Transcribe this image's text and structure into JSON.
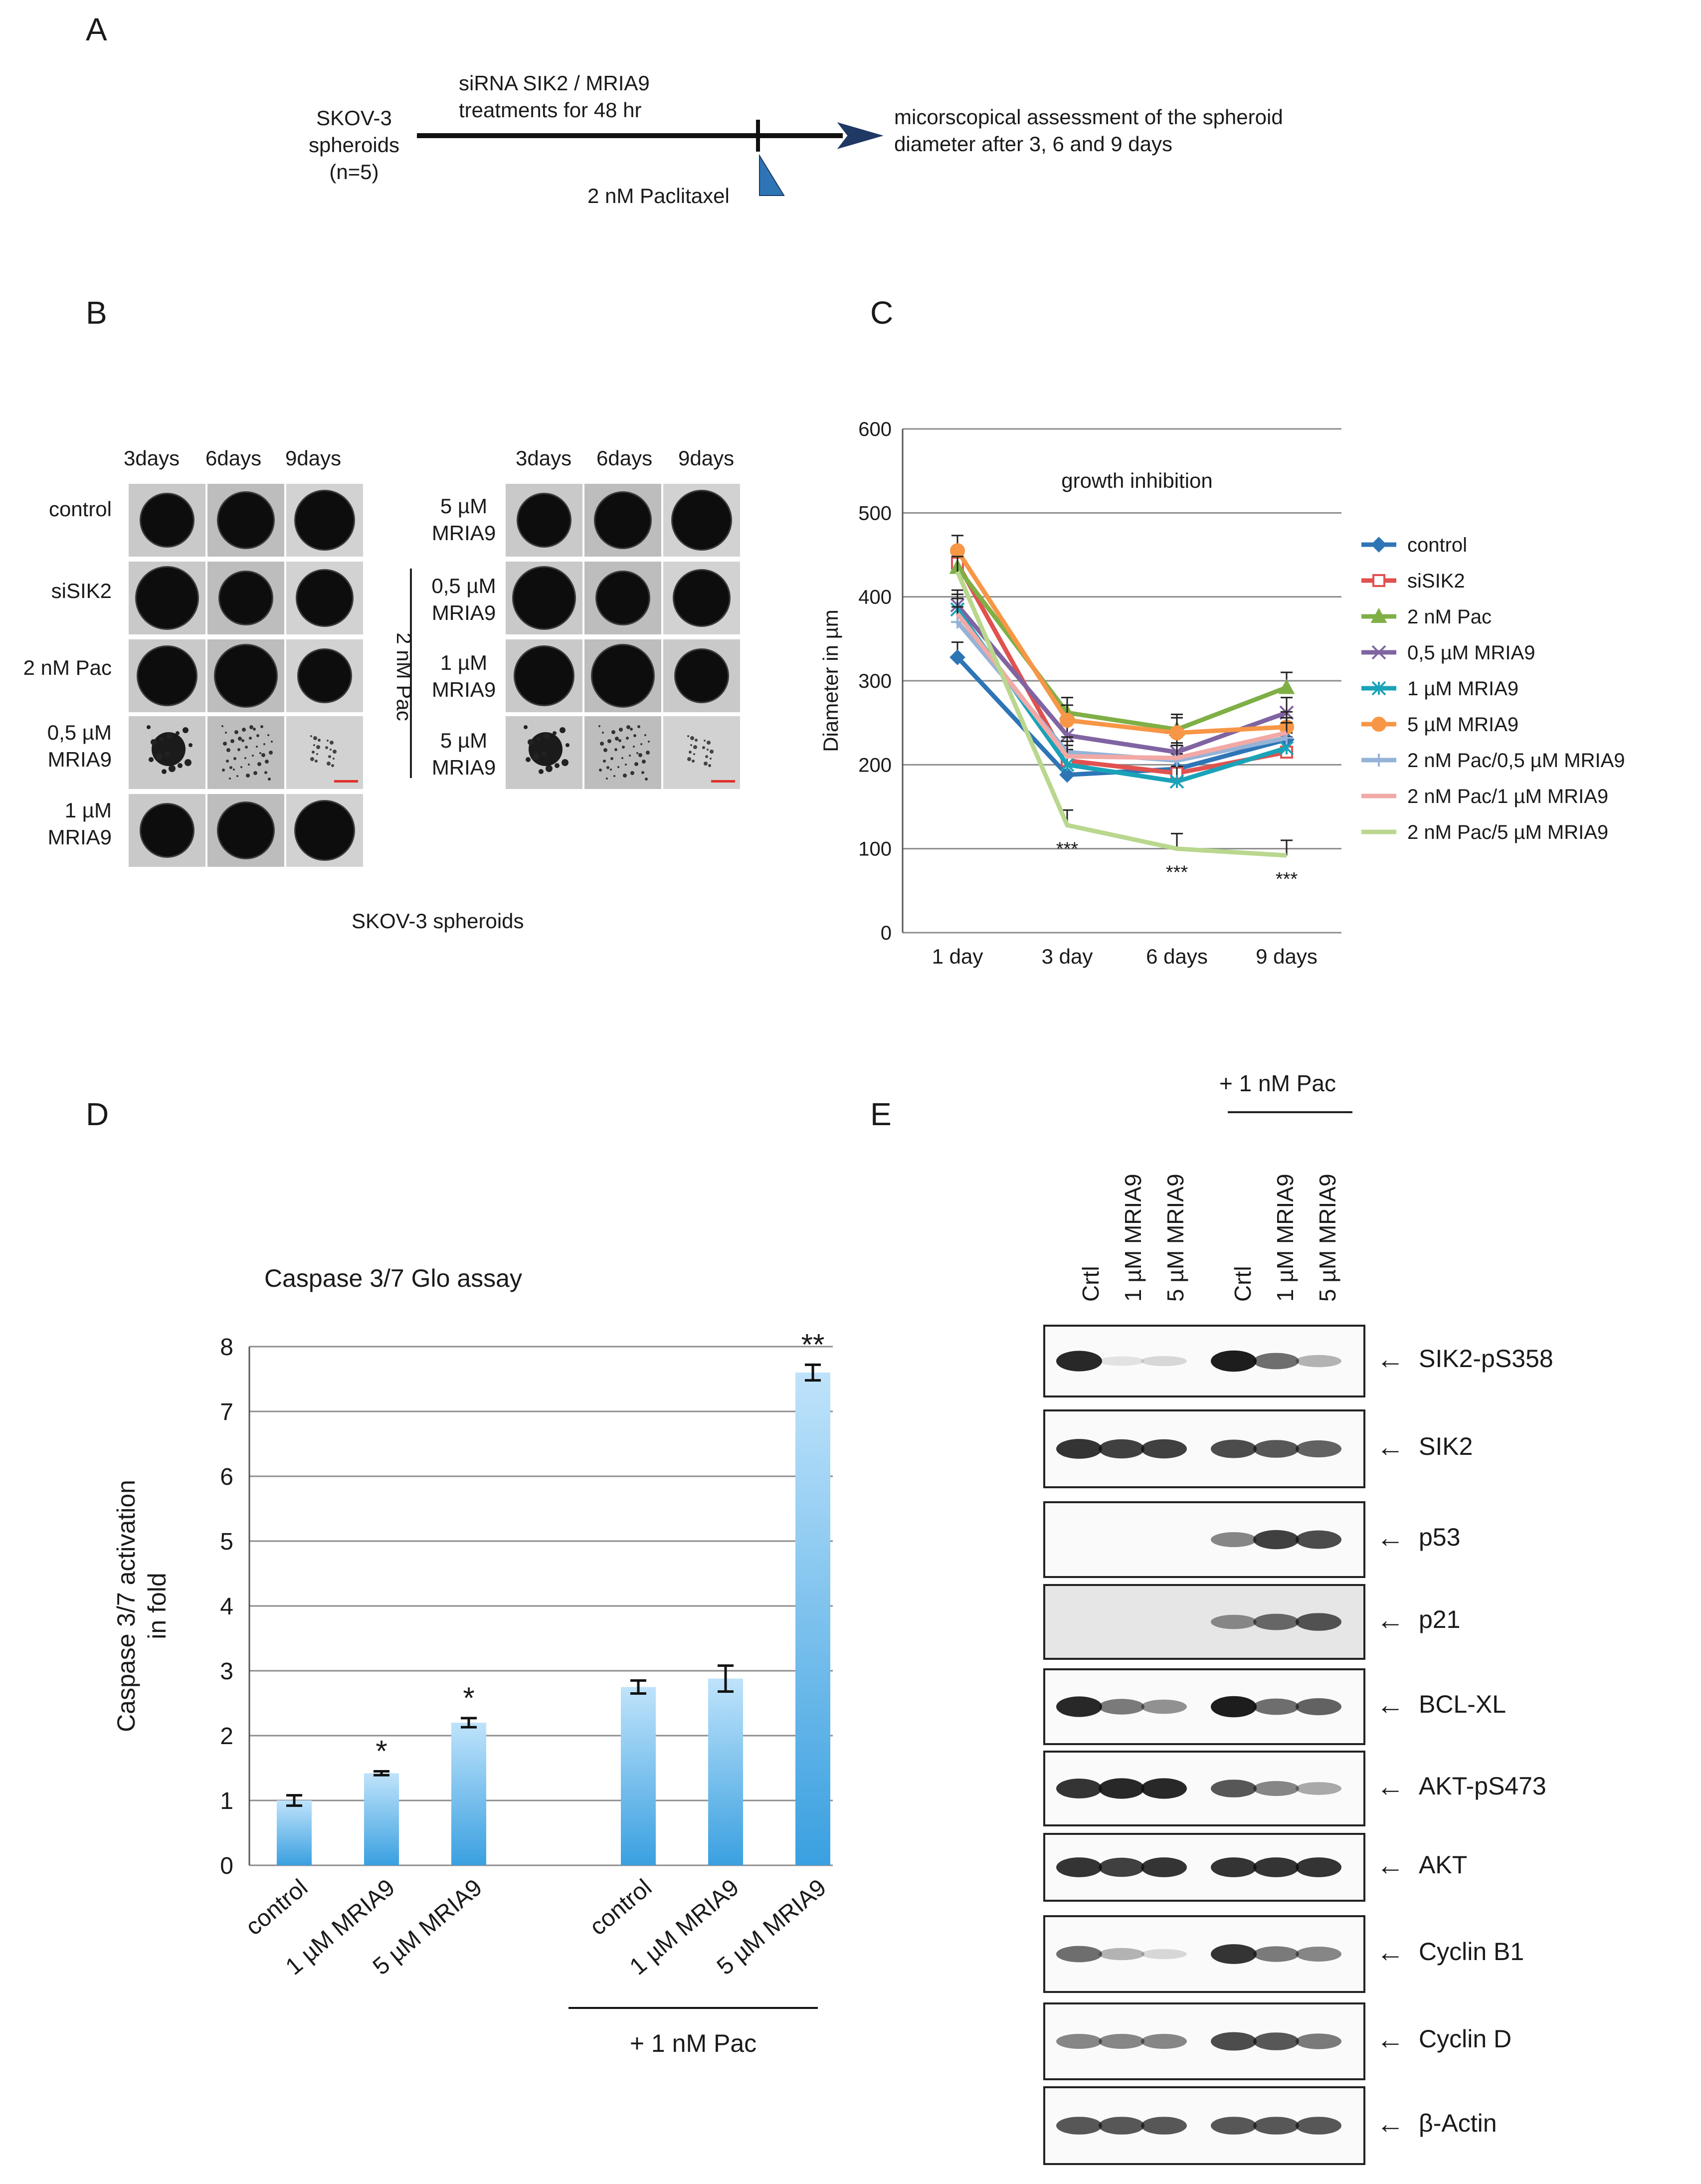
{
  "panel_letters": [
    "A",
    "B",
    "C",
    "D",
    "E"
  ],
  "panel_a": {
    "cell_line": [
      "SKOV-3",
      "spheroids",
      "(n=5)"
    ],
    "treatment": [
      "siRNA SIK2 / MRIA9",
      "treatments for 48 hr"
    ],
    "drug": "2 nM Paclitaxel",
    "assessment": [
      "micorscopical assessment of the spheroid",
      "diameter after 3, 6 and 9 days"
    ]
  },
  "panel_b": {
    "left_cols": [
      "3days",
      "6days",
      "9days"
    ],
    "left_rows": [
      [
        "control"
      ],
      [
        "siSIK2"
      ],
      [
        "2 nM Pac"
      ],
      [
        "0,5 µM",
        "MRIA9"
      ],
      [
        "1 µM",
        "MRIA9"
      ]
    ],
    "right_cols": [
      "3days",
      "6days",
      "9days"
    ],
    "right_rows": [
      [
        "5 µM",
        "MRIA9"
      ],
      [
        "0,5 µM",
        "MRIA9"
      ],
      [
        "1 µM",
        "MRIA9"
      ],
      [
        "5 µM",
        "MRIA9"
      ]
    ],
    "group_label": "2 nM Pac",
    "caption": "SKOV-3 spheroids"
  },
  "chart_data": [
    {
      "type": "line",
      "title": "growth inhibition",
      "xlabel": "",
      "ylabel": "Diameter in µm",
      "categories": [
        "1 day",
        "3 day",
        "6 days",
        "9 days"
      ],
      "ylim": [
        0,
        600
      ],
      "yticks": [
        0,
        100,
        200,
        300,
        400,
        500,
        600
      ],
      "series": [
        {
          "name": "control",
          "color": "#2e75b6",
          "marker": "diamond",
          "values": [
            328,
            188,
            195,
            230
          ]
        },
        {
          "name": "siSIK2",
          "color": "#e0524f",
          "marker": "square",
          "values": [
            440,
            205,
            190,
            215
          ]
        },
        {
          "name": "2 nM Pac",
          "color": "#7faf45",
          "marker": "triangle",
          "values": [
            435,
            262,
            242,
            292
          ]
        },
        {
          "name": "0,5 µM MRIA9",
          "color": "#8064a2",
          "marker": "x",
          "values": [
            390,
            235,
            215,
            262
          ]
        },
        {
          "name": "1 µM MRIA9",
          "color": "#1aa3b8",
          "marker": "star",
          "values": [
            385,
            200,
            180,
            220
          ]
        },
        {
          "name": "5 µM MRIA9",
          "color": "#f79646",
          "marker": "circle",
          "values": [
            455,
            253,
            238,
            245
          ]
        },
        {
          "name": "2 nM Pac/0,5 µM MRIA9",
          "color": "#95b3d7",
          "marker": "plus",
          "values": [
            370,
            215,
            205,
            232
          ]
        },
        {
          "name": "2 nM Pac/1 µM MRIA9",
          "color": "#f2a9a6",
          "marker": "none",
          "values": [
            380,
            210,
            208,
            238
          ]
        },
        {
          "name": "2 nM Pac/5 µM MRIA9",
          "color": "#b9d78e",
          "marker": "none",
          "values": [
            430,
            128,
            100,
            92
          ]
        }
      ],
      "annotations": [
        "***",
        "***",
        "***"
      ],
      "legend": "right"
    },
    {
      "type": "bar",
      "title": "Caspase 3/7 Glo assay",
      "ylabel": [
        "Caspase 3/7 activation",
        "in fold"
      ],
      "categories": [
        "control",
        "1 µM MRIA9",
        "5 µM MRIA9",
        "control",
        "1 µM MRIA9",
        "5 µM MRIA9"
      ],
      "values": [
        1.0,
        1.42,
        2.2,
        2.75,
        2.88,
        7.6
      ],
      "errors": [
        0.08,
        0.03,
        0.07,
        0.1,
        0.2,
        0.12
      ],
      "significance": [
        "",
        "*",
        "*",
        "",
        "",
        "**"
      ],
      "ylim": [
        0,
        8
      ],
      "yticks": [
        0,
        1,
        2,
        3,
        4,
        5,
        6,
        7,
        8
      ],
      "group_label": "+ 1 nM Pac",
      "color": "#3aa0e0"
    }
  ],
  "panel_e": {
    "pac_label": "+ 1 nM Pac",
    "lanes": [
      "Crtl",
      "1 µM MRIA9",
      "5 µM MRIA9",
      "Crtl",
      "1 µM MRIA9",
      "5 µM MRIA9"
    ],
    "blots": [
      "SIK2-pS358",
      "SIK2",
      "p53",
      "p21",
      "BCL-XL",
      "AKT-pS473",
      "AKT",
      "Cyclin B1",
      "Cyclin D",
      "β-Actin"
    ]
  }
}
